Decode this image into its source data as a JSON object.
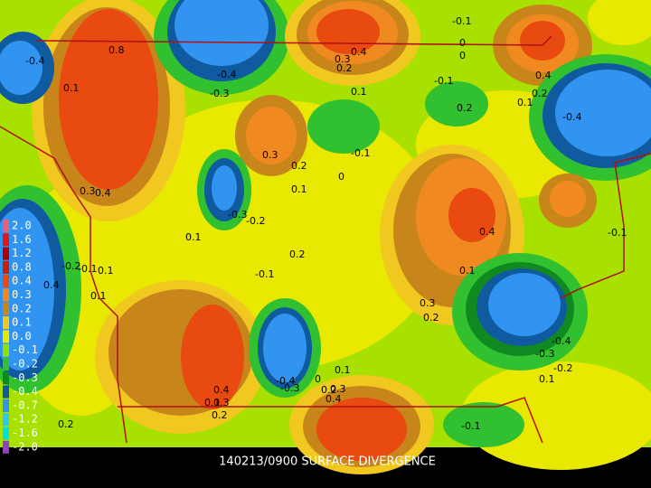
{
  "caption": "140213/0900 SURFACE DIVERGENCE",
  "legend": {
    "items": [
      {
        "label": "2.0",
        "color": "#e8607a"
      },
      {
        "label": "1.6",
        "color": "#e01818"
      },
      {
        "label": "1.2",
        "color": "#b00000"
      },
      {
        "label": "0.8",
        "color": "#c82000"
      },
      {
        "label": "0.4",
        "color": "#e84a10"
      },
      {
        "label": "0.3",
        "color": "#f08a20"
      },
      {
        "label": "0.2",
        "color": "#c8861a"
      },
      {
        "label": "0.1",
        "color": "#f0c820"
      },
      {
        "label": "0.0",
        "color": "#e8e800"
      },
      {
        "label": "-0.1",
        "color": "#90e000"
      },
      {
        "label": "-0.2",
        "color": "#30c030"
      },
      {
        "label": "-0.3",
        "color": "#108a20"
      },
      {
        "label": "-0.4",
        "color": "#105aa0"
      },
      {
        "label": "-0.7",
        "color": "#3094f0"
      },
      {
        "label": "-1.2",
        "color": "#30c8f0"
      },
      {
        "label": "-1.6",
        "color": "#00e0e0"
      },
      {
        "label": "-2.0",
        "color": "#9040c8"
      }
    ]
  },
  "contour_labels": [
    "0.8",
    "-0.4",
    "0.1",
    "-0.4",
    "-0.3",
    "0.3",
    "0.2",
    "0.4",
    "0.1",
    "-0.1",
    "0",
    "0",
    "0.2",
    "-0.1",
    "0.4",
    "0.2",
    "0.1",
    "-0.4",
    "0.3",
    "0.2",
    "0.1",
    "-0.1",
    "0",
    "0.4",
    "-0.3",
    "-0.2",
    "0.1",
    "0.4",
    "0.3",
    "-0.1",
    "0.2",
    "0.1",
    "-0.2",
    "-0.1",
    "0.1",
    "0.4",
    "0.1",
    "0.3",
    "0.2",
    "-0.1",
    "-0.4",
    "-0.3",
    "-0.2",
    "0.1",
    "0.1",
    "0",
    "0.4",
    "0.3",
    "0.2",
    "-0.4",
    "-0.3",
    "0.1",
    "0.2",
    "0.4",
    "0.3",
    "-0.1",
    "0.2"
  ]
}
